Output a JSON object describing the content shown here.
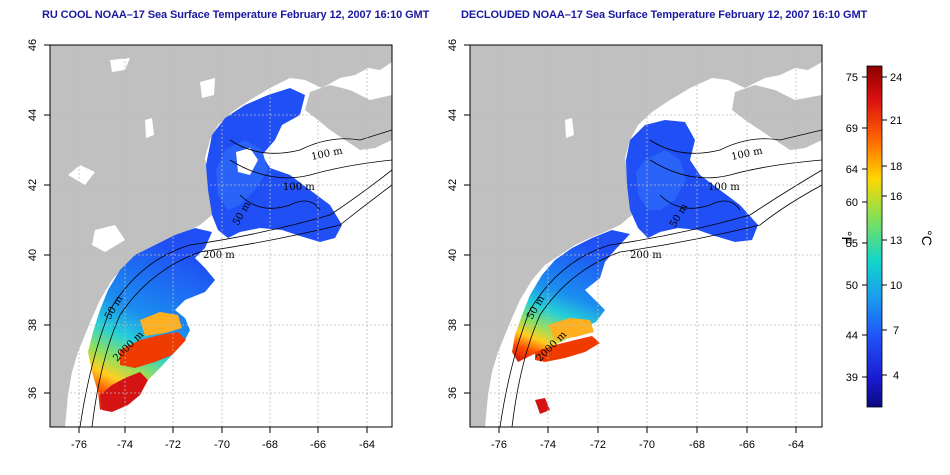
{
  "panels": [
    {
      "title": "RU COOL NOAA–17 Sea Surface Temperature February 12, 2007 16:10 GMT",
      "contour_labels": [
        "100 m",
        "100 m",
        "50 m",
        "200 m",
        "50 m",
        "2000 m"
      ]
    },
    {
      "title": "DECLOUDED NOAA–17 Sea Surface Temperature February 12, 2007 16:10 GMT",
      "contour_labels": [
        "100 m",
        "100 m",
        "50 m",
        "200 m",
        "50 m",
        "2000 m"
      ]
    }
  ],
  "axes": {
    "lon_ticks": [
      "-76",
      "-74",
      "-72",
      "-70",
      "-68",
      "-66",
      "-64"
    ],
    "lat_ticks": [
      "46",
      "44",
      "42",
      "40",
      "38",
      "36"
    ]
  },
  "colorbar": {
    "fahrenheit_ticks": [
      "75",
      "69",
      "64",
      "60",
      "55",
      "50",
      "44",
      "39"
    ],
    "celsius_ticks": [
      "24",
      "21",
      "18",
      "16",
      "13",
      "10",
      "7",
      "4"
    ],
    "fahrenheit_unit": "°F",
    "celsius_unit": "°C"
  },
  "colors": {
    "land": "#c0c0c0",
    "cloud_mask": "#ffffff",
    "grid": "#bbbbbb",
    "title": "#1a1aa0"
  }
}
